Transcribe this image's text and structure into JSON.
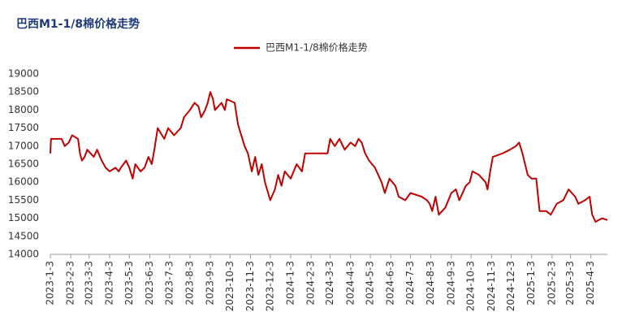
{
  "chart_data": {
    "type": "line",
    "title": "巴西M1-1/8棉价格走势",
    "x": [
      "2023-1-3",
      "2023-1-4",
      "2023-1-20",
      "2023-1-25",
      "2023-1-31",
      "2023-2-5",
      "2023-2-14",
      "2023-2-17",
      "2023-2-20",
      "2023-2-24",
      "2023-2-28",
      "2023-3-10",
      "2023-3-15",
      "2023-3-22",
      "2023-3-28",
      "2023-4-3",
      "2023-4-12",
      "2023-4-17",
      "2023-4-20",
      "2023-4-28",
      "2023-5-3",
      "2023-5-8",
      "2023-5-12",
      "2023-5-20",
      "2023-5-26",
      "2023-6-1",
      "2023-6-6",
      "2023-6-10",
      "2023-6-15",
      "2023-6-25",
      "2023-7-1",
      "2023-7-10",
      "2023-7-20",
      "2023-7-25",
      "2023-8-3",
      "2023-8-10",
      "2023-8-16",
      "2023-8-20",
      "2023-8-26",
      "2023-8-30",
      "2023-9-3",
      "2023-9-7",
      "2023-9-10",
      "2023-9-20",
      "2023-9-25",
      "2023-9-28",
      "2023-10-10",
      "2023-10-15",
      "2023-10-25",
      "2023-10-30",
      "2023-11-5",
      "2023-11-10",
      "2023-11-15",
      "2023-11-20",
      "2023-11-25",
      "2023-12-3",
      "2023-12-10",
      "2023-12-15",
      "2023-12-20",
      "2023-12-25",
      "2024-1-3",
      "2024-1-12",
      "2024-1-20",
      "2024-1-25",
      "2024-2-15",
      "2024-2-28",
      "2024-3-3",
      "2024-3-10",
      "2024-3-17",
      "2024-3-25",
      "2024-4-3",
      "2024-4-10",
      "2024-4-15",
      "2024-4-20",
      "2024-4-25",
      "2024-5-1",
      "2024-5-10",
      "2024-5-20",
      "2024-5-25",
      "2024-6-1",
      "2024-6-10",
      "2024-6-15",
      "2024-6-25",
      "2024-7-3",
      "2024-7-20",
      "2024-7-28",
      "2024-8-1",
      "2024-8-5",
      "2024-8-10",
      "2024-8-15",
      "2024-8-25",
      "2024-9-3",
      "2024-9-10",
      "2024-9-15",
      "2024-9-25",
      "2024-10-1",
      "2024-10-5",
      "2024-10-15",
      "2024-10-25",
      "2024-10-28",
      "2024-11-1",
      "2024-11-5",
      "2024-11-20",
      "2024-12-1",
      "2024-12-10",
      "2024-12-15",
      "2024-12-20",
      "2024-12-28",
      "2025-1-3",
      "2025-1-10",
      "2025-1-15",
      "2025-1-25",
      "2025-2-1",
      "2025-2-10",
      "2025-2-20",
      "2025-2-28",
      "2025-3-10",
      "2025-3-15",
      "2025-3-25",
      "2025-4-1",
      "2025-4-5",
      "2025-4-10",
      "2025-4-20",
      "2025-4-28"
    ],
    "series": [
      {
        "name": "巴西M1-1/8棉价格走势",
        "color": "#c00000",
        "values": [
          16800,
          17200,
          17200,
          17000,
          17100,
          17300,
          17200,
          16800,
          16600,
          16700,
          16900,
          16700,
          16900,
          16600,
          16400,
          16300,
          16400,
          16300,
          16400,
          16600,
          16400,
          16100,
          16500,
          16300,
          16400,
          16700,
          16500,
          16900,
          17500,
          17200,
          17500,
          17300,
          17500,
          17800,
          18000,
          18200,
          18100,
          17800,
          18000,
          18200,
          18500,
          18300,
          18000,
          18200,
          18000,
          18300,
          18200,
          17600,
          17000,
          16800,
          16300,
          16700,
          16200,
          16500,
          16000,
          15500,
          15800,
          16200,
          15900,
          16300,
          16100,
          16500,
          16300,
          16800,
          16800,
          16800,
          17200,
          17000,
          17200,
          16900,
          17100,
          17000,
          17200,
          17100,
          16800,
          16600,
          16400,
          16000,
          15700,
          16100,
          15900,
          15600,
          15500,
          15700,
          15600,
          15500,
          15400,
          15200,
          15600,
          15100,
          15300,
          15700,
          15800,
          15500,
          15900,
          16000,
          16300,
          16200,
          16000,
          15800,
          16300,
          16700,
          16800,
          16900,
          17000,
          17100,
          16800,
          16200,
          16100,
          16100,
          15200,
          15200,
          15100,
          15400,
          15500,
          15800,
          15600,
          15400,
          15500,
          15600,
          15100,
          14900,
          15000,
          14950
        ]
      }
    ],
    "xlim": [
      "2023-1-3",
      "2025-4-28"
    ],
    "xticks": [
      "2023-1-3",
      "2023-2-3",
      "2023-3-3",
      "2023-4-3",
      "2023-5-3",
      "2023-6-3",
      "2023-7-3",
      "2023-8-3",
      "2023-9-3",
      "2023-10-3",
      "2023-11-3",
      "2023-12-3",
      "2024-1-3",
      "2024-2-3",
      "2024-3-3",
      "2024-4-3",
      "2024-5-3",
      "2024-6-3",
      "2024-7-3",
      "2024-8-3",
      "2024-9-3",
      "2024-10-3",
      "2024-11-3",
      "2024-12-3",
      "2025-1-3",
      "2025-2-3",
      "2025-3-3",
      "2025-4-3"
    ],
    "ylim": [
      14000,
      19000
    ],
    "yticks": [
      14000,
      14500,
      15000,
      15500,
      16000,
      16500,
      17000,
      17500,
      18000,
      18500,
      19000
    ],
    "grid": false
  }
}
